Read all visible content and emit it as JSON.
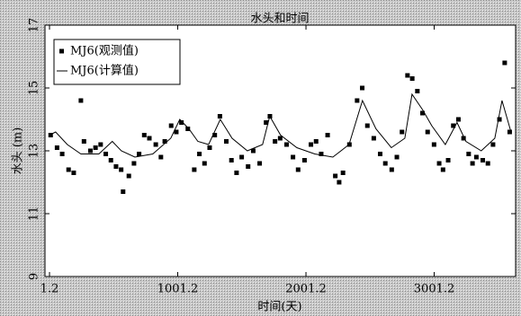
{
  "chart_data": {
    "type": "scatter",
    "title": "水头和时间",
    "x_label": "时间(天)",
    "y_label": "水头 (m)",
    "xlim": [
      -34,
      3636
    ],
    "ylim": [
      9,
      17
    ],
    "xticks": [
      1.2,
      1001.2,
      2001.2,
      3001.2
    ],
    "yticks": [
      9,
      11,
      13,
      15,
      17
    ],
    "grid": false,
    "legend": "upper left",
    "series": [
      {
        "name": "MJ6(观测值)",
        "type": "scatter",
        "color": "#000000",
        "x": [
          10,
          60,
          100,
          150,
          190,
          246,
          270,
          320,
          360,
          400,
          440,
          480,
          520,
          560,
          575,
          620,
          660,
          700,
          740,
          780,
          830,
          870,
          900,
          950,
          990,
          1030,
          1080,
          1130,
          1170,
          1210,
          1250,
          1290,
          1330,
          1380,
          1420,
          1460,
          1500,
          1550,
          1590,
          1640,
          1690,
          1720,
          1760,
          1800,
          1850,
          1900,
          1940,
          1990,
          2040,
          2080,
          2120,
          2170,
          2230,
          2260,
          2290,
          2340,
          2400,
          2440,
          2480,
          2530,
          2580,
          2620,
          2670,
          2710,
          2750,
          2793,
          2830,
          2870,
          2910,
          2950,
          3000,
          3040,
          3070,
          3110,
          3150,
          3190,
          3230,
          3270,
          3300,
          3330,
          3380,
          3420,
          3460,
          3510,
          3551,
          3590
        ],
        "values": [
          13.5,
          13.1,
          12.9,
          12.4,
          12.3,
          14.6,
          13.3,
          13.0,
          13.1,
          13.2,
          12.9,
          12.7,
          12.5,
          12.4,
          11.7,
          12.2,
          12.6,
          12.9,
          13.5,
          13.4,
          13.2,
          12.8,
          13.3,
          13.8,
          13.6,
          13.9,
          13.7,
          12.4,
          12.9,
          12.6,
          13.1,
          13.5,
          14.1,
          13.3,
          12.7,
          12.3,
          12.8,
          12.5,
          13.0,
          12.6,
          13.9,
          14.1,
          13.3,
          13.4,
          13.2,
          12.8,
          12.4,
          12.7,
          13.2,
          13.3,
          12.9,
          13.5,
          12.2,
          12.0,
          12.3,
          13.2,
          14.6,
          15.0,
          13.8,
          13.4,
          12.9,
          12.6,
          12.4,
          12.8,
          13.6,
          15.4,
          15.3,
          14.9,
          14.2,
          13.6,
          13.2,
          12.6,
          12.4,
          12.7,
          13.8,
          14.0,
          13.4,
          12.9,
          12.6,
          12.8,
          12.7,
          12.6,
          13.2,
          14.0,
          15.8,
          13.6
        ]
      },
      {
        "name": "MJ6(计算值)",
        "type": "line",
        "color": "#000000",
        "x": [
          1.2,
          49,
          140,
          246,
          386,
          491,
          561,
          667,
          807,
          947,
          1017,
          1088,
          1158,
          1242,
          1333,
          1425,
          1544,
          1663,
          1719,
          1803,
          1930,
          2070,
          2211,
          2337,
          2442,
          2547,
          2667,
          2772,
          2828,
          2912,
          2982,
          3088,
          3179,
          3249,
          3368,
          3474,
          3530,
          3600
        ],
        "values": [
          13.5,
          13.6,
          13.2,
          12.9,
          12.9,
          13.3,
          13.0,
          12.8,
          12.9,
          13.4,
          14.0,
          13.7,
          13.3,
          13.2,
          14.0,
          13.4,
          13.0,
          13.2,
          14.1,
          13.5,
          13.1,
          12.9,
          12.8,
          13.2,
          14.6,
          13.7,
          13.1,
          13.4,
          14.8,
          14.3,
          13.8,
          13.2,
          13.9,
          13.3,
          13.0,
          13.4,
          14.6,
          13.6
        ]
      }
    ]
  }
}
